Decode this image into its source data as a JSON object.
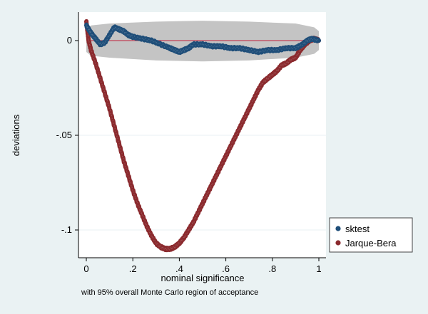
{
  "chart_data": {
    "type": "line",
    "title": "",
    "xlabel": "nominal significance",
    "ylabel": "deviations",
    "note": "with 95% overall Monte Carlo region of acceptance",
    "xlim": [
      0,
      1
    ],
    "ylim": [
      -0.11,
      0.015
    ],
    "x_ticks": [
      {
        "value": 0,
        "label": "0"
      },
      {
        "value": 0.2,
        "label": ".2"
      },
      {
        "value": 0.4,
        "label": ".4"
      },
      {
        "value": 0.6,
        "label": ".6"
      },
      {
        "value": 0.8,
        "label": ".8"
      },
      {
        "value": 1,
        "label": "1"
      }
    ],
    "y_ticks": [
      {
        "value": 0,
        "label": "0"
      },
      {
        "value": -0.05,
        "label": "-.05"
      },
      {
        "value": -0.1,
        "label": "-.1"
      }
    ],
    "grid": true,
    "legend_position": "right, outside plot",
    "reference_line": {
      "y": 0,
      "color": "#c0203a"
    },
    "acceptance_region": {
      "shape": "band",
      "color": "#c4c4c4",
      "upper": [
        [
          0,
          0.006
        ],
        [
          0.02,
          0.008
        ],
        [
          0.1,
          0.009
        ],
        [
          0.3,
          0.01
        ],
        [
          0.5,
          0.0105
        ],
        [
          0.7,
          0.01
        ],
        [
          0.9,
          0.009
        ],
        [
          0.98,
          0.007
        ],
        [
          1,
          0.005
        ]
      ],
      "lower": [
        [
          0,
          -0.006
        ],
        [
          0.02,
          -0.008
        ],
        [
          0.1,
          -0.009
        ],
        [
          0.3,
          -0.0105
        ],
        [
          0.5,
          -0.011
        ],
        [
          0.7,
          -0.0105
        ],
        [
          0.9,
          -0.009
        ],
        [
          0.98,
          -0.007
        ],
        [
          1,
          -0.005
        ]
      ]
    },
    "series": [
      {
        "name": "sktest",
        "color": "#1f4e79",
        "points": [
          [
            0,
            0.008
          ],
          [
            0.01,
            0.006
          ],
          [
            0.02,
            0.004
          ],
          [
            0.04,
            0.001
          ],
          [
            0.06,
            -0.002
          ],
          [
            0.08,
            -0.001
          ],
          [
            0.1,
            0.003
          ],
          [
            0.12,
            0.007
          ],
          [
            0.14,
            0.006
          ],
          [
            0.16,
            0.005
          ],
          [
            0.18,
            0.003
          ],
          [
            0.2,
            0.002
          ],
          [
            0.24,
            0.001
          ],
          [
            0.28,
            0
          ],
          [
            0.32,
            -0.002
          ],
          [
            0.36,
            -0.004
          ],
          [
            0.38,
            -0.005
          ],
          [
            0.4,
            -0.006
          ],
          [
            0.42,
            -0.005
          ],
          [
            0.44,
            -0.004
          ],
          [
            0.46,
            -0.002
          ],
          [
            0.5,
            -0.002
          ],
          [
            0.54,
            -0.003
          ],
          [
            0.58,
            -0.003
          ],
          [
            0.62,
            -0.004
          ],
          [
            0.66,
            -0.004
          ],
          [
            0.7,
            -0.005
          ],
          [
            0.74,
            -0.006
          ],
          [
            0.78,
            -0.005
          ],
          [
            0.82,
            -0.005
          ],
          [
            0.86,
            -0.004
          ],
          [
            0.9,
            -0.004
          ],
          [
            0.93,
            -0.002
          ],
          [
            0.95,
            0
          ],
          [
            0.97,
            0.001
          ],
          [
            1,
            0
          ]
        ]
      },
      {
        "name": "Jarque-Bera",
        "color": "#8b2a2e",
        "points": [
          [
            0,
            0.01
          ],
          [
            0.005,
            0.005
          ],
          [
            0.01,
            0
          ],
          [
            0.02,
            -0.005
          ],
          [
            0.04,
            -0.012
          ],
          [
            0.06,
            -0.02
          ],
          [
            0.08,
            -0.028
          ],
          [
            0.1,
            -0.036
          ],
          [
            0.12,
            -0.045
          ],
          [
            0.14,
            -0.054
          ],
          [
            0.16,
            -0.063
          ],
          [
            0.18,
            -0.071
          ],
          [
            0.2,
            -0.079
          ],
          [
            0.22,
            -0.086
          ],
          [
            0.24,
            -0.092
          ],
          [
            0.26,
            -0.098
          ],
          [
            0.28,
            -0.103
          ],
          [
            0.3,
            -0.107
          ],
          [
            0.32,
            -0.109
          ],
          [
            0.34,
            -0.11
          ],
          [
            0.36,
            -0.11
          ],
          [
            0.38,
            -0.109
          ],
          [
            0.4,
            -0.107
          ],
          [
            0.42,
            -0.104
          ],
          [
            0.44,
            -0.1
          ],
          [
            0.46,
            -0.096
          ],
          [
            0.48,
            -0.091
          ],
          [
            0.5,
            -0.086
          ],
          [
            0.52,
            -0.081
          ],
          [
            0.54,
            -0.076
          ],
          [
            0.56,
            -0.071
          ],
          [
            0.58,
            -0.066
          ],
          [
            0.6,
            -0.061
          ],
          [
            0.62,
            -0.056
          ],
          [
            0.64,
            -0.051
          ],
          [
            0.66,
            -0.046
          ],
          [
            0.68,
            -0.041
          ],
          [
            0.7,
            -0.036
          ],
          [
            0.72,
            -0.031
          ],
          [
            0.74,
            -0.026
          ],
          [
            0.76,
            -0.022
          ],
          [
            0.78,
            -0.02
          ],
          [
            0.8,
            -0.018
          ],
          [
            0.82,
            -0.016
          ],
          [
            0.84,
            -0.013
          ],
          [
            0.86,
            -0.012
          ],
          [
            0.88,
            -0.01
          ],
          [
            0.9,
            -0.009
          ],
          [
            0.92,
            -0.005
          ],
          [
            0.94,
            -0.002
          ],
          [
            0.96,
            0
          ],
          [
            0.98,
            0.001
          ],
          [
            1,
            0
          ]
        ]
      }
    ]
  }
}
